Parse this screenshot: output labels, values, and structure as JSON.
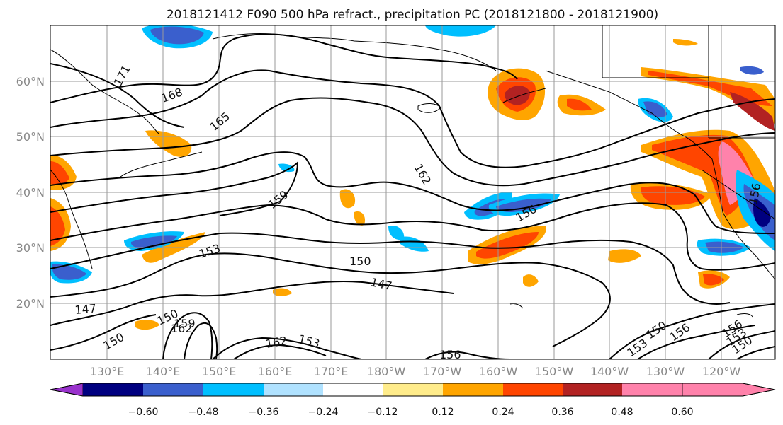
{
  "title": "2018121412 F090 500 hPa refract., precipitation PC (2018121800 - 2018121900)",
  "lat_labels": [
    "60°N",
    "50°N",
    "40°N",
    "30°N",
    "20°N"
  ],
  "lon_labels": [
    "130°E",
    "140°E",
    "150°E",
    "160°E",
    "170°E",
    "180°W",
    "170°W",
    "160°W",
    "150°W",
    "140°W",
    "130°W",
    "120°W"
  ],
  "colorbar": {
    "colors": [
      "#9932CC",
      "#000080",
      "#3A5FCD",
      "#00BFFF",
      "#B0E2FF",
      "#FFFFFF",
      "#FFEC8B",
      "#FFA500",
      "#FF4500",
      "#B22222",
      "#FF82AB"
    ],
    "tick_labels": [
      "−0.60",
      "−0.48",
      "−0.36",
      "−0.24",
      "−0.12",
      "0.12",
      "0.24",
      "0.36",
      "0.48",
      "0.60"
    ]
  },
  "contour_labels": [
    "171",
    "168",
    "165",
    "162",
    "159",
    "156",
    "153",
    "150",
    "147",
    "150",
    "147",
    "159",
    "162",
    "150",
    "156",
    "150",
    "153",
    "156",
    "153",
    "150",
    "156",
    "162",
    "153",
    "156"
  ],
  "colors": {
    "grid": "#9a9a9a",
    "contour": "#000000"
  }
}
